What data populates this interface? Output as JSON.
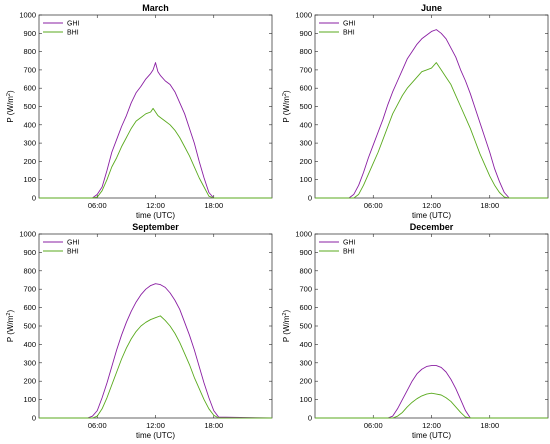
{
  "figure": {
    "background": "#ffffff"
  },
  "chart_data": [
    {
      "type": "line",
      "title": "March",
      "xlabel": "time (UTC)",
      "ylabel_main": "P (W/m",
      "ylabel_sup": "2",
      "ylabel_close": ")",
      "ylim": [
        0,
        1000
      ],
      "yticks": [
        0,
        100,
        200,
        300,
        400,
        500,
        600,
        700,
        800,
        900,
        1000
      ],
      "xlim": [
        0,
        24
      ],
      "xticks": [
        6,
        12,
        18
      ],
      "xtick_labels": [
        "06:00",
        "12:00",
        "18:00"
      ],
      "legend_position": "top-left",
      "x": [
        0,
        5.5,
        6,
        6.5,
        7,
        7.5,
        8,
        8.5,
        9,
        9.5,
        10,
        10.5,
        11,
        11.5,
        11.75,
        12,
        12.25,
        12.5,
        13,
        13.5,
        14,
        14.5,
        15,
        15.5,
        16,
        16.5,
        17,
        17.5,
        18,
        24
      ],
      "series": [
        {
          "name": "GHI",
          "color": "#8a1fa3",
          "values": [
            0,
            0,
            20,
            60,
            150,
            250,
            320,
            390,
            450,
            520,
            575,
            610,
            650,
            680,
            700,
            740,
            690,
            670,
            640,
            620,
            580,
            520,
            460,
            380,
            300,
            200,
            110,
            30,
            0,
            0
          ]
        },
        {
          "name": "BHI",
          "color": "#5aaa1e",
          "values": [
            0,
            0,
            5,
            40,
            100,
            170,
            220,
            280,
            330,
            380,
            420,
            440,
            460,
            470,
            490,
            470,
            450,
            440,
            420,
            400,
            370,
            330,
            280,
            230,
            170,
            110,
            60,
            10,
            0,
            0
          ]
        }
      ]
    },
    {
      "type": "line",
      "title": "June",
      "xlabel": "time (UTC)",
      "ylabel_main": "P (W/m",
      "ylabel_sup": "2",
      "ylabel_close": ")",
      "ylim": [
        0,
        1000
      ],
      "yticks": [
        0,
        100,
        200,
        300,
        400,
        500,
        600,
        700,
        800,
        900,
        1000
      ],
      "xlim": [
        0,
        24
      ],
      "xticks": [
        6,
        12,
        18
      ],
      "xtick_labels": [
        "06:00",
        "12:00",
        "18:00"
      ],
      "legend_position": "top-left",
      "x": [
        0,
        3.5,
        4,
        4.5,
        5,
        5.5,
        6,
        6.5,
        7,
        7.5,
        8,
        8.5,
        9,
        9.5,
        10,
        10.5,
        11,
        11.5,
        12,
        12.5,
        13,
        13.5,
        14,
        14.5,
        15,
        15.5,
        16,
        16.5,
        17,
        17.5,
        18,
        18.5,
        19,
        19.5,
        20,
        24
      ],
      "series": [
        {
          "name": "GHI",
          "color": "#8a1fa3",
          "values": [
            0,
            0,
            20,
            70,
            140,
            220,
            290,
            360,
            430,
            510,
            580,
            640,
            700,
            760,
            800,
            840,
            870,
            890,
            910,
            920,
            900,
            870,
            820,
            770,
            700,
            640,
            570,
            490,
            410,
            330,
            250,
            160,
            90,
            30,
            0,
            0
          ]
        },
        {
          "name": "BHI",
          "color": "#5aaa1e",
          "values": [
            0,
            0,
            0,
            20,
            70,
            130,
            190,
            250,
            320,
            390,
            460,
            510,
            560,
            600,
            630,
            660,
            690,
            700,
            710,
            740,
            700,
            660,
            620,
            560,
            500,
            440,
            380,
            310,
            240,
            180,
            120,
            70,
            30,
            5,
            0,
            0
          ]
        }
      ]
    },
    {
      "type": "line",
      "title": "September",
      "xlabel": "time (UTC)",
      "ylabel_main": "P (W/m",
      "ylabel_sup": "2",
      "ylabel_close": ")",
      "ylim": [
        0,
        1000
      ],
      "yticks": [
        0,
        100,
        200,
        300,
        400,
        500,
        600,
        700,
        800,
        900,
        1000
      ],
      "xlim": [
        0,
        24
      ],
      "xticks": [
        6,
        12,
        18
      ],
      "xtick_labels": [
        "06:00",
        "12:00",
        "18:00"
      ],
      "legend_position": "top-left",
      "x": [
        0,
        5,
        5.5,
        6,
        6.5,
        7,
        7.5,
        8,
        8.5,
        9,
        9.5,
        10,
        10.5,
        11,
        11.5,
        12,
        12.5,
        13,
        13.5,
        14,
        14.5,
        15,
        15.5,
        16,
        16.5,
        17,
        17.5,
        18,
        18.5,
        24
      ],
      "series": [
        {
          "name": "GHI",
          "color": "#8a1fa3",
          "values": [
            0,
            0,
            10,
            40,
            110,
            190,
            280,
            370,
            450,
            520,
            580,
            630,
            670,
            700,
            720,
            730,
            725,
            710,
            680,
            640,
            590,
            520,
            450,
            370,
            280,
            190,
            110,
            40,
            5,
            0
          ]
        },
        {
          "name": "BHI",
          "color": "#5aaa1e",
          "values": [
            0,
            0,
            0,
            10,
            50,
            110,
            180,
            250,
            320,
            380,
            430,
            470,
            500,
            520,
            535,
            545,
            555,
            530,
            500,
            460,
            410,
            350,
            290,
            220,
            160,
            100,
            50,
            15,
            0,
            0
          ]
        }
      ]
    },
    {
      "type": "line",
      "title": "December",
      "xlabel": "time (UTC)",
      "ylabel_main": "P (W/m",
      "ylabel_sup": "2",
      "ylabel_close": ")",
      "ylim": [
        0,
        1000
      ],
      "yticks": [
        0,
        100,
        200,
        300,
        400,
        500,
        600,
        700,
        800,
        900,
        1000
      ],
      "xlim": [
        0,
        24
      ],
      "xticks": [
        6,
        12,
        18
      ],
      "xtick_labels": [
        "06:00",
        "12:00",
        "18:00"
      ],
      "legend_position": "top-left",
      "x": [
        0,
        7.5,
        8,
        8.5,
        9,
        9.5,
        10,
        10.5,
        11,
        11.5,
        12,
        12.5,
        13,
        13.5,
        14,
        14.5,
        15,
        15.5,
        16,
        24
      ],
      "series": [
        {
          "name": "GHI",
          "color": "#8a1fa3",
          "values": [
            0,
            0,
            10,
            50,
            100,
            150,
            200,
            240,
            265,
            280,
            285,
            285,
            275,
            250,
            210,
            160,
            100,
            40,
            0,
            0
          ]
        },
        {
          "name": "BHI",
          "color": "#5aaa1e",
          "values": [
            0,
            0,
            0,
            10,
            30,
            60,
            85,
            105,
            120,
            130,
            135,
            130,
            125,
            110,
            90,
            60,
            30,
            5,
            0,
            0
          ]
        }
      ]
    }
  ]
}
